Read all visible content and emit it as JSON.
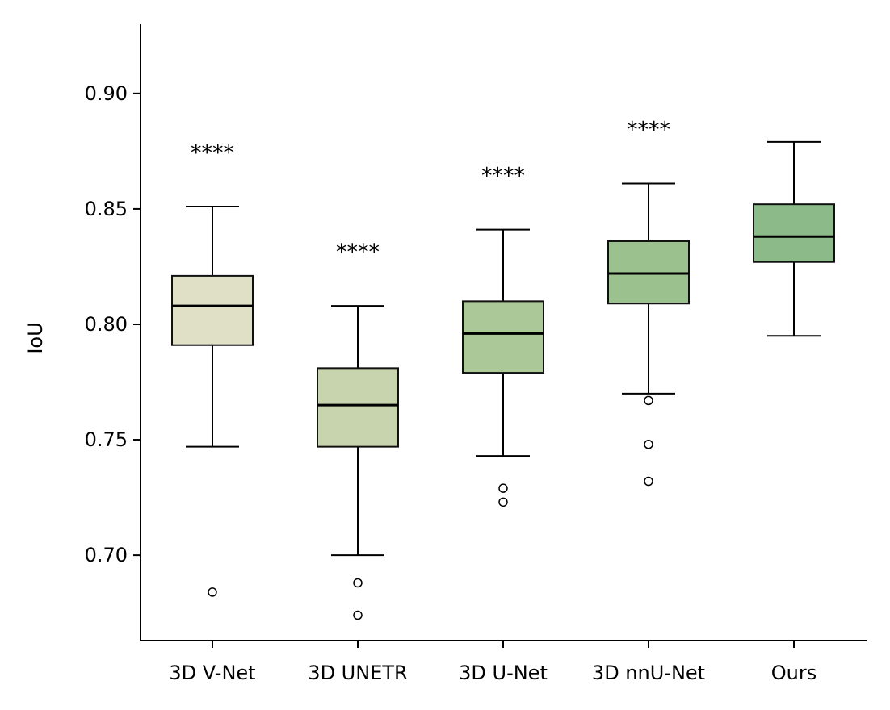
{
  "chart_data": {
    "type": "box",
    "ylabel": "IoU",
    "xlabel": "",
    "title": "",
    "ylim": [
      0.663,
      0.93
    ],
    "yticks": [
      0.7,
      0.75,
      0.8,
      0.85,
      0.9
    ],
    "ytick_labels": [
      "0.70",
      "0.75",
      "0.80",
      "0.85",
      "0.90"
    ],
    "grid": false,
    "categories": [
      "3D V-Net",
      "3D UNETR",
      "3D U-Net",
      "3D nnU-Net",
      "Ours"
    ],
    "boxes": [
      {
        "label": "3D V-Net",
        "whisker_low": 0.747,
        "q1": 0.791,
        "median": 0.808,
        "q3": 0.821,
        "whisker_high": 0.851,
        "outliers": [
          0.684
        ],
        "significance": "****",
        "color": "#e0e0c6"
      },
      {
        "label": "3D UNETR",
        "whisker_low": 0.7,
        "q1": 0.747,
        "median": 0.765,
        "q3": 0.781,
        "whisker_high": 0.808,
        "outliers": [
          0.688,
          0.674
        ],
        "significance": "****",
        "color": "#c8d4ad"
      },
      {
        "label": "3D U-Net",
        "whisker_low": 0.743,
        "q1": 0.779,
        "median": 0.796,
        "q3": 0.81,
        "whisker_high": 0.841,
        "outliers": [
          0.729,
          0.723
        ],
        "significance": "****",
        "color": "#abc898"
      },
      {
        "label": "3D nnU-Net",
        "whisker_low": 0.77,
        "q1": 0.809,
        "median": 0.822,
        "q3": 0.836,
        "whisker_high": 0.861,
        "outliers": [
          0.767,
          0.748,
          0.732
        ],
        "significance": "****",
        "color": "#9bc18e"
      },
      {
        "label": "Ours",
        "whisker_low": 0.795,
        "q1": 0.827,
        "median": 0.838,
        "q3": 0.852,
        "whisker_high": 0.879,
        "outliers": [],
        "significance": "",
        "color": "#8cba88"
      }
    ]
  }
}
